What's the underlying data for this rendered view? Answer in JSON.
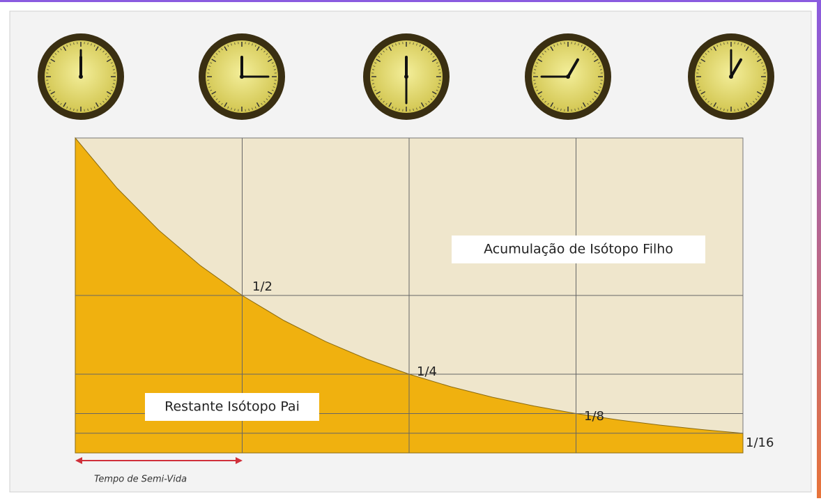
{
  "labels": {
    "daughter": "Acumulação de Isótopo Filho",
    "parent": "Restante Isótopo Pai",
    "half": "1/2",
    "quarter": "1/4",
    "eighth": "1/8",
    "sixteenth": "1/16",
    "axis": "Tempo de Semi-Vida"
  }
}
